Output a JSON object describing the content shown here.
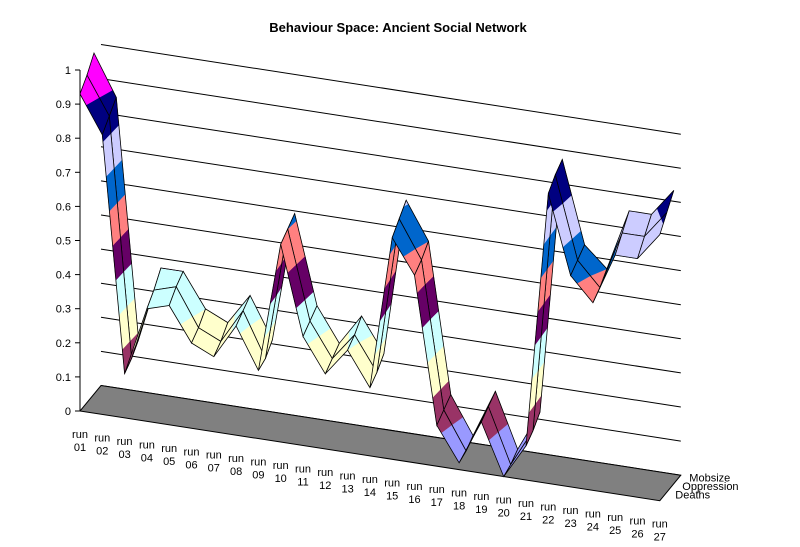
{
  "chart_data": {
    "type": "area",
    "variant": "3d-surface",
    "title": "Behaviour Space: Ancient Social Network",
    "categories": [
      "run 01",
      "run 02",
      "run 03",
      "run 04",
      "run 05",
      "run 06",
      "run 07",
      "run 08",
      "run 09",
      "run 10",
      "run 11",
      "run 12",
      "run 13",
      "run 14",
      "run 15",
      "run 16",
      "run 17",
      "run 18",
      "run 19",
      "run 20",
      "run 21",
      "run 22",
      "run 23",
      "run 24",
      "run 25",
      "run 26",
      "run 27"
    ],
    "series": [
      {
        "name": "Deaths",
        "values": [
          0.93,
          0.82,
          0.13,
          0.33,
          0.35,
          0.25,
          0.22,
          0.32,
          0.2,
          0.58,
          0.32,
          0.22,
          0.3,
          0.2,
          0.65,
          0.55,
          0.12,
          0.02,
          0.15,
          0.0,
          0.1,
          0.85,
          0.62,
          0.55,
          0.7,
          0.7,
          0.78
        ]
      },
      {
        "name": "Oppression",
        "values": [
          0.96,
          0.85,
          0.15,
          0.36,
          0.38,
          0.27,
          0.24,
          0.34,
          0.21,
          0.6,
          0.34,
          0.24,
          0.32,
          0.22,
          0.68,
          0.57,
          0.14,
          0.03,
          0.17,
          0.01,
          0.12,
          0.88,
          0.64,
          0.57,
          0.74,
          0.74,
          0.82
        ]
      },
      {
        "name": "Mobsize",
        "values": [
          1.0,
          0.88,
          0.18,
          0.4,
          0.4,
          0.3,
          0.27,
          0.36,
          0.24,
          0.62,
          0.36,
          0.26,
          0.35,
          0.25,
          0.71,
          0.6,
          0.16,
          0.05,
          0.19,
          0.03,
          0.15,
          0.9,
          0.66,
          0.6,
          0.78,
          0.78,
          0.86
        ]
      }
    ],
    "y_ticks": [
      "0",
      "0.1",
      "0.2",
      "0.3",
      "0.4",
      "0.5",
      "0.6",
      "0.7",
      "0.8",
      "0.9",
      "1"
    ],
    "ylim": [
      0,
      1
    ],
    "band_colors": [
      "#9999ff",
      "#993366",
      "#ffffcc",
      "#ccffff",
      "#660066",
      "#ff8080",
      "#0066cc",
      "#ccccff",
      "#000080",
      "#ff00ff"
    ],
    "floor_color": "#808080",
    "gridlines": true
  }
}
